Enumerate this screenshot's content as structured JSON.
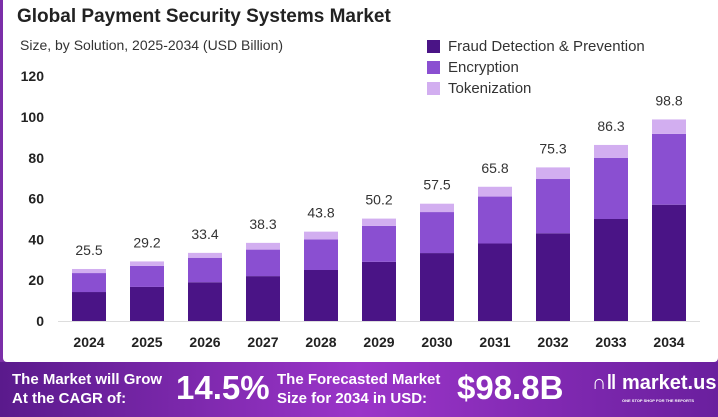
{
  "chart_data": {
    "type": "bar",
    "stacked": true,
    "title": "Global Payment Security Systems Market",
    "subtitle": "Size, by Solution, 2025-2034 (USD Billion)",
    "categories": [
      "2024",
      "2025",
      "2026",
      "2027",
      "2028",
      "2029",
      "2030",
      "2031",
      "2032",
      "2033",
      "2034"
    ],
    "series": [
      {
        "name": "Fraud Detection & Prevention",
        "color": "#4a1486",
        "values": [
          14.2,
          16.7,
          19,
          22,
          25,
          29,
          33.3,
          38,
          43,
          50,
          57
        ]
      },
      {
        "name": "Encryption",
        "color": "#8a4fd1",
        "values": [
          9.3,
          10.3,
          12,
          13,
          15,
          17.6,
          20.1,
          23,
          26.6,
          30,
          34.7
        ]
      },
      {
        "name": "Tokenization",
        "color": "#d2aef0",
        "values": [
          2,
          2.2,
          2.4,
          3.3,
          3.8,
          3.6,
          4.1,
          4.8,
          5.7,
          6.3,
          7.1
        ]
      }
    ],
    "totals": [
      "25.5",
      "29.2",
      "33.4",
      "38.3",
      "43.8",
      "50.2",
      "57.5",
      "65.8",
      "75.3",
      "86.3",
      "98.8"
    ],
    "yticks": [
      "0",
      "20",
      "40",
      "60",
      "80",
      "100",
      "120"
    ],
    "ylim": [
      0,
      120
    ],
    "legend": "top-right",
    "grid": false
  },
  "banner": {
    "cagr_text_1": "The Market will Grow",
    "cagr_text_2": "At the CAGR of:",
    "cagr": "14.5%",
    "forecast_text_1": "The Forecasted Market",
    "forecast_text_2": "Size for 2034 in USD:",
    "forecast": "$98.8B",
    "brand": "market.us",
    "tagline": "ONE STOP SHOP FOR THE REPORTS"
  }
}
